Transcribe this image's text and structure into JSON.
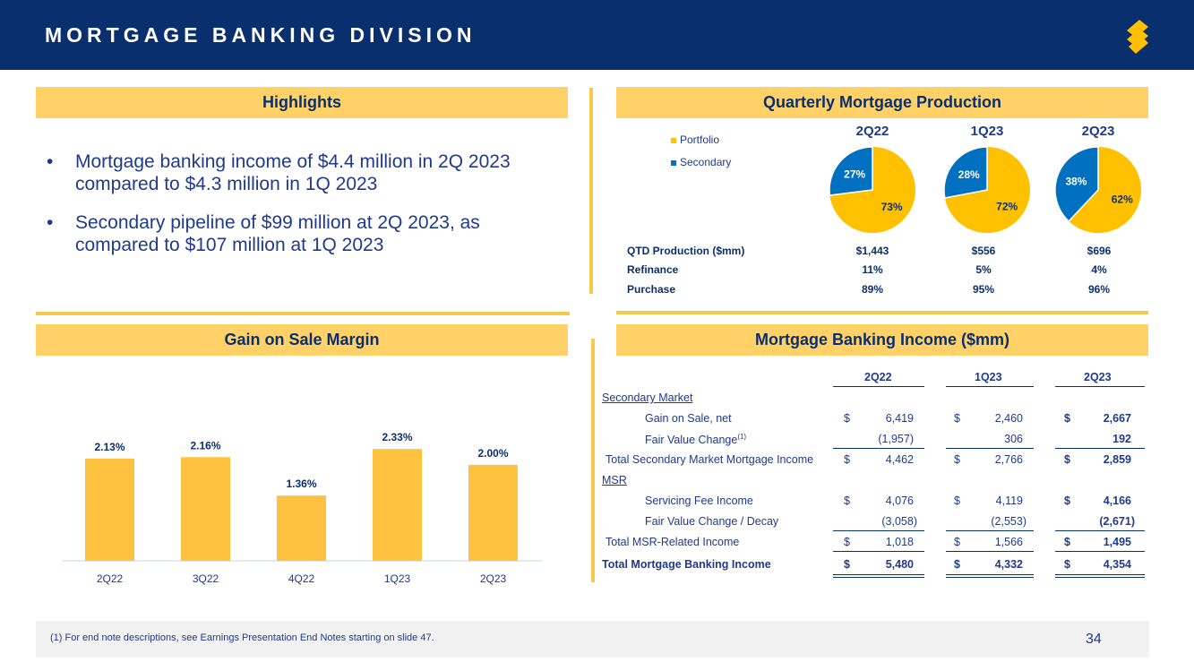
{
  "header": {
    "title": "MORTGAGE BANKING DIVISION",
    "logo_icon": "s-logo-icon"
  },
  "highlights": {
    "title": "Highlights",
    "bullets": [
      "Mortgage banking income of $4.4 million in 2Q 2023 compared to $4.3 million in 1Q 2023",
      "Secondary pipeline of $99 million at 2Q 2023, as compared to $107 million at 1Q 2023"
    ]
  },
  "production": {
    "title": "Quarterly Mortgage Production",
    "legend": [
      "Portfolio",
      "Secondary"
    ],
    "colors": {
      "portfolio": "#ffc000",
      "secondary": "#0070c0"
    },
    "pies": [
      {
        "label": "2Q22",
        "portfolio": 73,
        "secondary": 27,
        "portfolio_text": "73%",
        "secondary_text": "27%"
      },
      {
        "label": "1Q23",
        "portfolio": 72,
        "secondary": 28,
        "portfolio_text": "72%",
        "secondary_text": "28%"
      },
      {
        "label": "2Q23",
        "portfolio": 62,
        "secondary": 38,
        "portfolio_text": "62%",
        "secondary_text": "38%"
      }
    ],
    "rows": [
      {
        "label": "QTD Production ($mm)",
        "values": [
          "$1,443",
          "$556",
          "$696"
        ]
      },
      {
        "label": "Refinance",
        "values": [
          "11%",
          "5%",
          "4%"
        ]
      },
      {
        "label": "Purchase",
        "values": [
          "89%",
          "95%",
          "96%"
        ]
      }
    ]
  },
  "gain": {
    "title": "Gain on Sale Margin"
  },
  "chart_data": {
    "type": "bar",
    "categories": [
      "2Q22",
      "3Q22",
      "4Q22",
      "1Q23",
      "2Q23"
    ],
    "values": [
      2.13,
      2.16,
      1.36,
      2.33,
      2.0
    ],
    "value_labels": [
      "2.13%",
      "2.16%",
      "1.36%",
      "2.33%",
      "2.00%"
    ],
    "ylim": [
      0,
      2.8
    ],
    "bar_color": "#ffc240",
    "grid": false
  },
  "income": {
    "title": "Mortgage Banking Income ($mm)",
    "columns": [
      "2Q22",
      "1Q23",
      "2Q23"
    ],
    "sections": {
      "secondary": "Secondary Market",
      "msr": "MSR"
    },
    "rows": {
      "gain_on_sale": {
        "label": "Gain on Sale, net",
        "values": [
          "6,419",
          "2,460",
          "2,667"
        ]
      },
      "fv_change": {
        "label": "Fair Value Change",
        "sup": "(1)",
        "values": [
          "(1,957)",
          "306",
          "192"
        ]
      },
      "total_secondary": {
        "label": "Total Secondary Market Mortgage Income",
        "values": [
          "4,462",
          "2,766",
          "2,859"
        ]
      },
      "servicing_fee": {
        "label": "Servicing Fee Income",
        "values": [
          "4,076",
          "4,119",
          "4,166"
        ]
      },
      "fv_decay": {
        "label": "Fair Value Change / Decay",
        "values": [
          "(3,058)",
          "(2,553)",
          "(2,671)"
        ]
      },
      "total_msr": {
        "label": "Total MSR-Related Income",
        "values": [
          "1,018",
          "1,566",
          "1,495"
        ]
      },
      "total": {
        "label": "Total Mortgage Banking Income",
        "values": [
          "5,480",
          "4,332",
          "4,354"
        ]
      }
    },
    "currency": "$"
  },
  "footer": {
    "footnote": "(1)   For end note descriptions, see Earnings Presentation End Notes starting on slide 47.",
    "page": "34"
  }
}
